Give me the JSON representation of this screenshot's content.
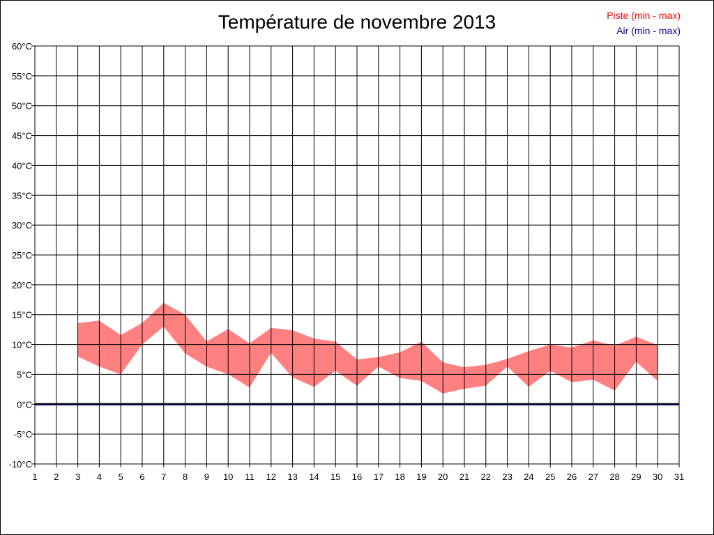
{
  "chart_data": {
    "type": "area",
    "title": "Température de novembre 2013",
    "legend": {
      "placement": "top-right",
      "items": [
        {
          "label": "Piste (min - max)",
          "color": "#ff0000"
        },
        {
          "label": "Air (min - max)",
          "color": "#000099"
        }
      ]
    },
    "xlabel": "",
    "ylabel": "",
    "x_ticks": [
      "1",
      "2",
      "3",
      "4",
      "5",
      "6",
      "7",
      "8",
      "9",
      "10",
      "11",
      "12",
      "13",
      "14",
      "15",
      "16",
      "17",
      "18",
      "19",
      "20",
      "21",
      "22",
      "23",
      "24",
      "25",
      "26",
      "27",
      "28",
      "29",
      "30",
      "31"
    ],
    "y_ticks": [
      "60°C",
      "55°C",
      "50°C",
      "45°C",
      "40°C",
      "35°C",
      "30°C",
      "25°C",
      "20°C",
      "15°C",
      "10°C",
      "5°C",
      "0°C",
      "-5°C",
      "-10°C"
    ],
    "xlim": [
      1,
      31
    ],
    "ylim": [
      -10,
      60
    ],
    "grid": true,
    "band_color": "#ff8080",
    "zero_line_color": "#000000",
    "air_line_color": "#000099",
    "series": [
      {
        "name": "Piste (min - max)",
        "x": [
          3,
          4,
          5,
          6,
          7,
          8,
          9,
          10,
          11,
          12,
          13,
          14,
          15,
          16,
          17,
          18,
          19,
          20,
          21,
          22,
          23,
          24,
          25,
          26,
          27,
          28,
          29,
          30
        ],
        "min": [
          8,
          6.3,
          5,
          10,
          13,
          8.5,
          6.3,
          5,
          2.8,
          8.6,
          4.5,
          2.9,
          5.6,
          3.1,
          6.3,
          4.4,
          3.9,
          1.8,
          2.6,
          3.1,
          6.3,
          2.9,
          5.6,
          3.7,
          4.1,
          2.3,
          7.1,
          3.9
        ],
        "max": [
          13.6,
          14,
          11.6,
          13.6,
          17,
          15,
          10.5,
          12.6,
          10.2,
          12.8,
          12.4,
          11,
          10.5,
          7.5,
          7.9,
          8.7,
          10.5,
          7,
          6.2,
          6.6,
          7.6,
          8.9,
          10,
          9.5,
          10.7,
          9.8,
          11.3,
          9.9
        ]
      }
    ]
  }
}
